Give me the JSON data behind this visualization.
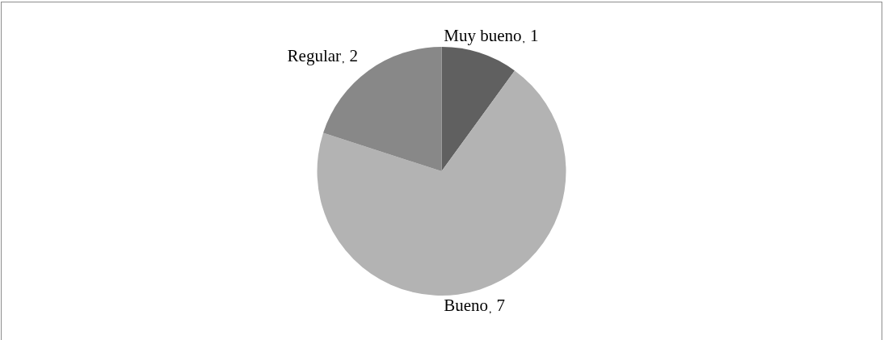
{
  "chart_data": {
    "type": "pie",
    "categories": [
      "Muy bueno",
      "Bueno",
      "Regular"
    ],
    "values": [
      1,
      7,
      2
    ],
    "colors": [
      "#606060",
      "#b3b3b3",
      "#888888"
    ],
    "data_labels": true
  }
}
